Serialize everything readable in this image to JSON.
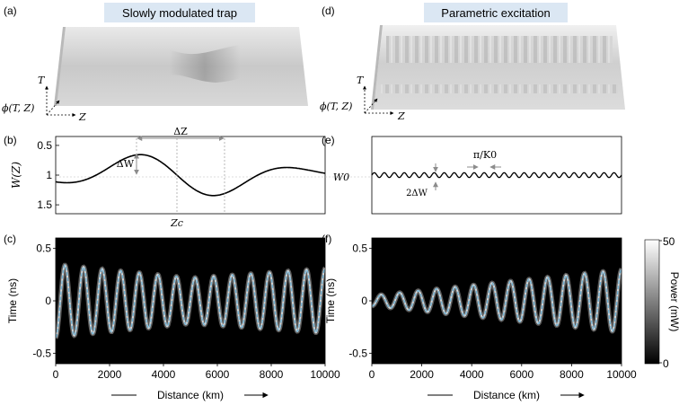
{
  "panels": {
    "a": {
      "label": "(a)",
      "title": "Slowly modulated trap",
      "axis_t": "T",
      "axis_z": "Z",
      "axis_phi": "ϕ(T, Z)"
    },
    "d": {
      "label": "(d)",
      "title": "Parametric excitation",
      "axis_t": "T",
      "axis_z": "Z",
      "axis_phi": "ϕ(T, Z)"
    },
    "b": {
      "label": "(b)",
      "ylabel": "W(Z)",
      "yticks": [
        "1.5",
        "1",
        "0.5"
      ],
      "ann_dZ": "ΔZ",
      "ann_dW": "ΔW",
      "ann_Zc": "Zc"
    },
    "e": {
      "label": "(e)",
      "ann_W0": "W0",
      "ann_period": "π/K0",
      "ann_2dW": "2ΔW"
    },
    "c": {
      "label": "(c)"
    },
    "f": {
      "label": "(f)"
    }
  },
  "colorbar": {
    "label": "Power (mW)",
    "max_label": "50",
    "min_label": "0",
    "range": [
      0,
      50
    ]
  },
  "colors": {
    "trace": "#6fb3d6",
    "heatmap_bg": "#000000",
    "curve": "#000000",
    "annotation": "#8c8c8c"
  },
  "chart_data": [
    {
      "id": "b",
      "type": "line",
      "title": "",
      "xlabel": "",
      "ylabel": "W(Z)",
      "xlim": [
        0,
        10000
      ],
      "ylim": [
        0.35,
        1.65
      ],
      "series": [
        {
          "name": "W(Z)",
          "baseline": 1.0,
          "delta_w": 0.39,
          "zc": 4500,
          "delta_z": 3000
        }
      ],
      "yticks": [
        0.5,
        1,
        1.5
      ]
    },
    {
      "id": "e",
      "type": "line",
      "title": "",
      "xlabel": "",
      "ylabel": "",
      "xlim": [
        0,
        10000
      ],
      "ylim": [
        0.35,
        1.65
      ],
      "series": [
        {
          "name": "W(Z)",
          "baseline": 1.0,
          "delta_w": 0.04,
          "cycles": 25
        }
      ]
    },
    {
      "id": "c",
      "type": "heatmap",
      "xlabel": "Distance (km)",
      "ylabel": "Time (ns)",
      "xlim": [
        0,
        10000
      ],
      "ylim": [
        -0.6,
        0.6
      ],
      "xticks": [
        0,
        2000,
        4000,
        6000,
        8000,
        10000
      ],
      "yticks": [
        0.5,
        0,
        -0.5
      ],
      "series": [
        {
          "name": "trajectory",
          "amplitude_start": 0.35,
          "amplitude_mid": 0.22,
          "amplitude_end": 0.31,
          "cycles": 14.5
        }
      ]
    },
    {
      "id": "f",
      "type": "heatmap",
      "xlabel": "Distance (km)",
      "ylabel": "Time (ns)",
      "xlim": [
        0,
        10000
      ],
      "ylim": [
        -0.6,
        0.6
      ],
      "xticks": [
        0,
        2000,
        4000,
        6000,
        8000,
        10000
      ],
      "yticks": [
        0.5,
        0,
        -0.5
      ],
      "series": [
        {
          "name": "trajectory",
          "amplitude_start": 0.05,
          "amplitude_end": 0.3,
          "cycles": 13.5
        }
      ]
    }
  ]
}
